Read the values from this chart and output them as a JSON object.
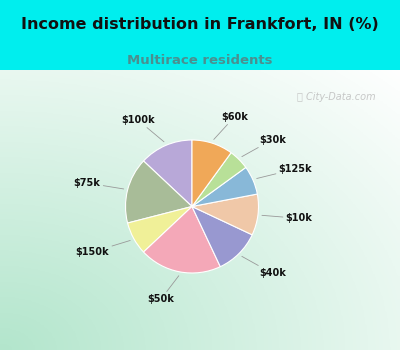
{
  "title": "Income distribution in Frankfort, IN (%)",
  "subtitle": "Multirace residents",
  "title_color": "#111111",
  "subtitle_color": "#4a9090",
  "bg_cyan": "#00EEEE",
  "watermark": "City-Data.com",
  "labels": [
    "$100k",
    "$75k",
    "$150k",
    "$50k",
    "$40k",
    "$10k",
    "$125k",
    "$30k",
    "$60k"
  ],
  "values": [
    13,
    16,
    8,
    20,
    11,
    10,
    7,
    5,
    10
  ],
  "colors": [
    "#b8a8d8",
    "#a8bc98",
    "#f0f098",
    "#f4a8b8",
    "#9898d0",
    "#f0c8a8",
    "#88b8d8",
    "#b8e098",
    "#f0a858"
  ],
  "startangle": 90,
  "figsize": [
    4.0,
    3.5
  ],
  "dpi": 100,
  "title_fontsize": 11.5,
  "subtitle_fontsize": 9.5
}
